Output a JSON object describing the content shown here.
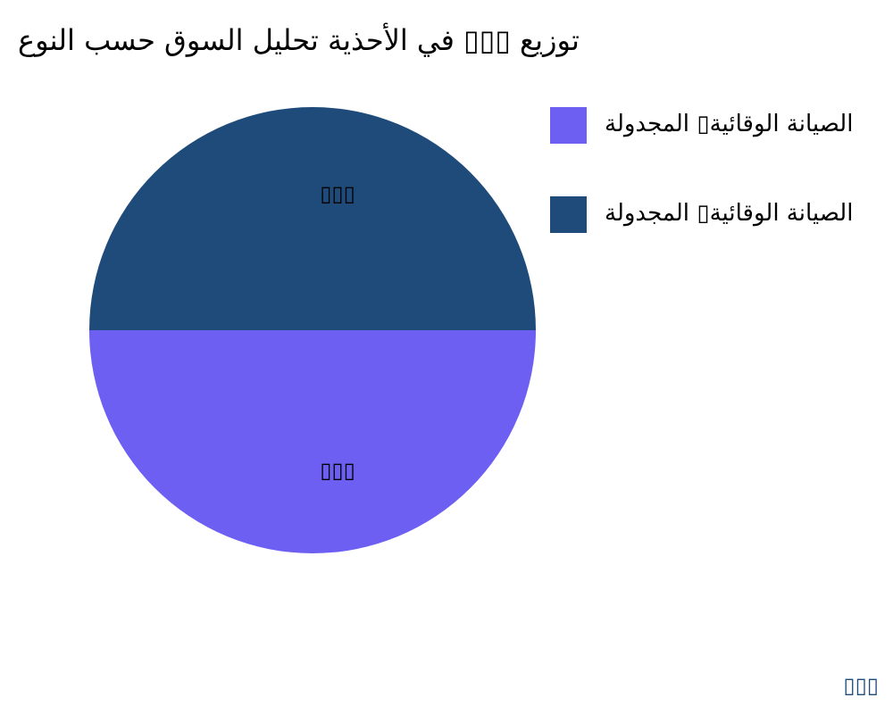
{
  "chart_data": {
    "type": "pie",
    "title": "توزيع ▯▯▯ في الأحذية تحليل السوق حسب النوع",
    "slices": [
      {
        "name": "الصيانة الوقائية▯ المجدولة",
        "value": 50,
        "label": "▯▯▯",
        "color": "#6c5ff2"
      },
      {
        "name": "الصيانة الوقائية▯ المجدولة",
        "value": 50,
        "label": "▯▯▯",
        "color": "#1f4b7a"
      }
    ],
    "legend_position": "top-right"
  },
  "watermark": "▯▯▯"
}
